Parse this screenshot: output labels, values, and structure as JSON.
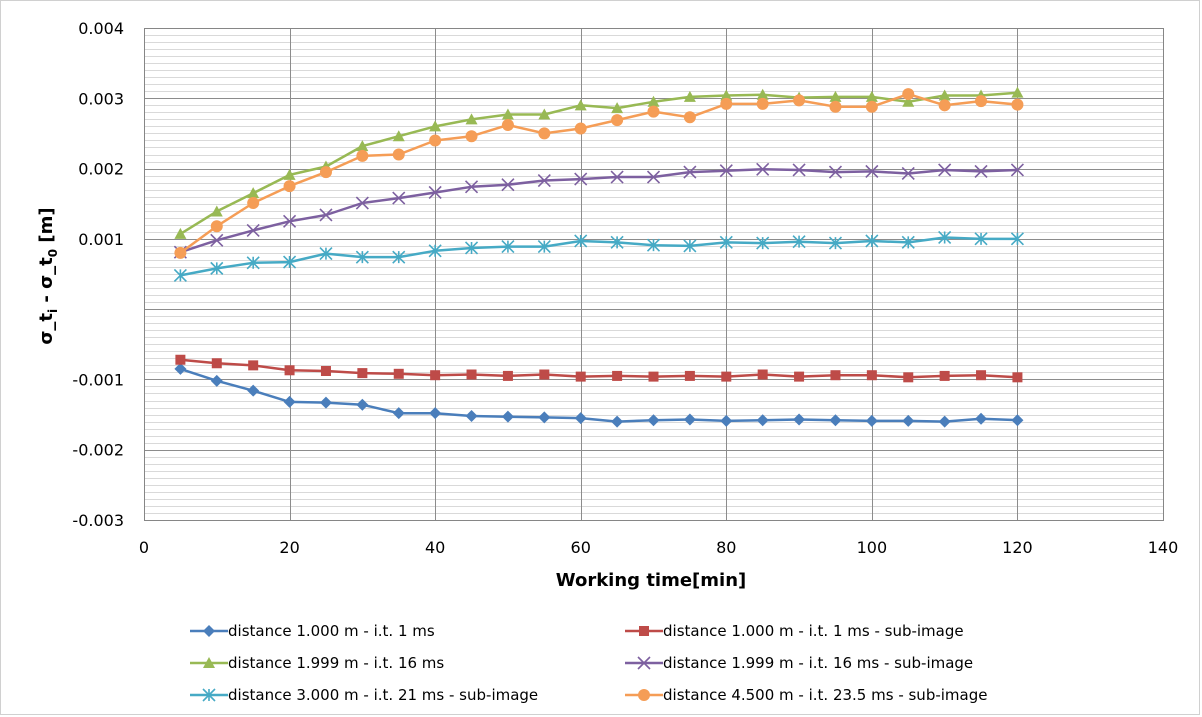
{
  "chart_data": {
    "type": "line",
    "xlabel": "Working time[min]",
    "ylabel": "σ_t_i - σ_t_0 [m]",
    "ylabel_parts": {
      "pre": "σ_t",
      "sub1": "i",
      "mid": " - σ_t",
      "sub2": "0",
      "post": " [m]"
    },
    "xlim": [
      0,
      140
    ],
    "ylim": [
      -0.003,
      0.004
    ],
    "x_ticks": [
      0,
      20,
      40,
      60,
      80,
      100,
      120,
      140
    ],
    "x_tick_labels": [
      "0",
      "20",
      "40",
      "60",
      "80",
      "100",
      "120",
      "140"
    ],
    "y_ticks": [
      -0.003,
      -0.002,
      -0.001,
      0.001,
      0.002,
      0.003,
      0.004
    ],
    "y_tick_labels": [
      "-0.003",
      "-0.002",
      "-0.001",
      "0.001",
      "0.002",
      "0.003",
      "0.004"
    ],
    "grid": true,
    "legend_position": "bottom",
    "x": [
      5,
      10,
      15,
      20,
      25,
      30,
      35,
      40,
      45,
      50,
      55,
      60,
      65,
      70,
      75,
      80,
      85,
      90,
      95,
      100,
      105,
      110,
      115,
      120
    ],
    "series": [
      {
        "name": "distance 1.000 m - i.t. 1 ms",
        "color": "#4a7ebb",
        "marker": "diamond",
        "values": [
          -0.00085,
          -0.00102,
          -0.00116,
          -0.00132,
          -0.00133,
          -0.00136,
          -0.00148,
          -0.00148,
          -0.00152,
          -0.00153,
          -0.00154,
          -0.00155,
          -0.0016,
          -0.00158,
          -0.00157,
          -0.00159,
          -0.00158,
          -0.00157,
          -0.00158,
          -0.00159,
          -0.00159,
          -0.0016,
          -0.00156,
          -0.00158
        ]
      },
      {
        "name": "distance 1.000 m - i.t. 1 ms - sub-image",
        "color": "#be4b48",
        "marker": "square",
        "values": [
          -0.00072,
          -0.00077,
          -0.0008,
          -0.00087,
          -0.00088,
          -0.00091,
          -0.00092,
          -0.00094,
          -0.00093,
          -0.00095,
          -0.00093,
          -0.00096,
          -0.00095,
          -0.00096,
          -0.00095,
          -0.00096,
          -0.00093,
          -0.00096,
          -0.00094,
          -0.00094,
          -0.00097,
          -0.00095,
          -0.00094,
          -0.00097
        ]
      },
      {
        "name": "distance 1.999 m - i.t. 16 ms",
        "color": "#98b954",
        "marker": "triangle",
        "values": [
          0.00107,
          0.00139,
          0.00165,
          0.00191,
          0.00203,
          0.00232,
          0.00246,
          0.0026,
          0.0027,
          0.00277,
          0.00277,
          0.0029,
          0.00286,
          0.00295,
          0.00302,
          0.00304,
          0.00305,
          0.00301,
          0.00302,
          0.00302,
          0.00295,
          0.00304,
          0.00304,
          0.00308
        ]
      },
      {
        "name": "distance 1.999 m - i.t. 16 ms - sub-image",
        "color": "#7d60a0",
        "marker": "x",
        "values": [
          0.00081,
          0.00098,
          0.00112,
          0.00125,
          0.00134,
          0.00151,
          0.00158,
          0.00166,
          0.00174,
          0.00177,
          0.00183,
          0.00185,
          0.00188,
          0.00188,
          0.00195,
          0.00197,
          0.00199,
          0.00198,
          0.00195,
          0.00196,
          0.00193,
          0.00198,
          0.00196,
          0.00198
        ]
      },
      {
        "name": "distance 3.000 m - i.t. 21 ms - sub-image",
        "color": "#46aac5",
        "marker": "star",
        "values": [
          0.00048,
          0.00058,
          0.00066,
          0.00067,
          0.00079,
          0.00074,
          0.00074,
          0.00083,
          0.00087,
          0.00089,
          0.00089,
          0.00097,
          0.00095,
          0.00091,
          0.0009,
          0.00095,
          0.00094,
          0.00096,
          0.00094,
          0.00097,
          0.00095,
          0.00102,
          0.001,
          0.001
        ]
      },
      {
        "name": "distance 4.500 m - i.t. 23.5 ms - sub-image",
        "color": "#f59d56",
        "marker": "circle",
        "values": [
          0.0008,
          0.00118,
          0.00151,
          0.00175,
          0.00195,
          0.00218,
          0.0022,
          0.0024,
          0.00246,
          0.00262,
          0.0025,
          0.00257,
          0.00269,
          0.00281,
          0.00273,
          0.00292,
          0.00292,
          0.00297,
          0.00288,
          0.00288,
          0.00306,
          0.0029,
          0.00296,
          0.00291
        ]
      }
    ]
  }
}
